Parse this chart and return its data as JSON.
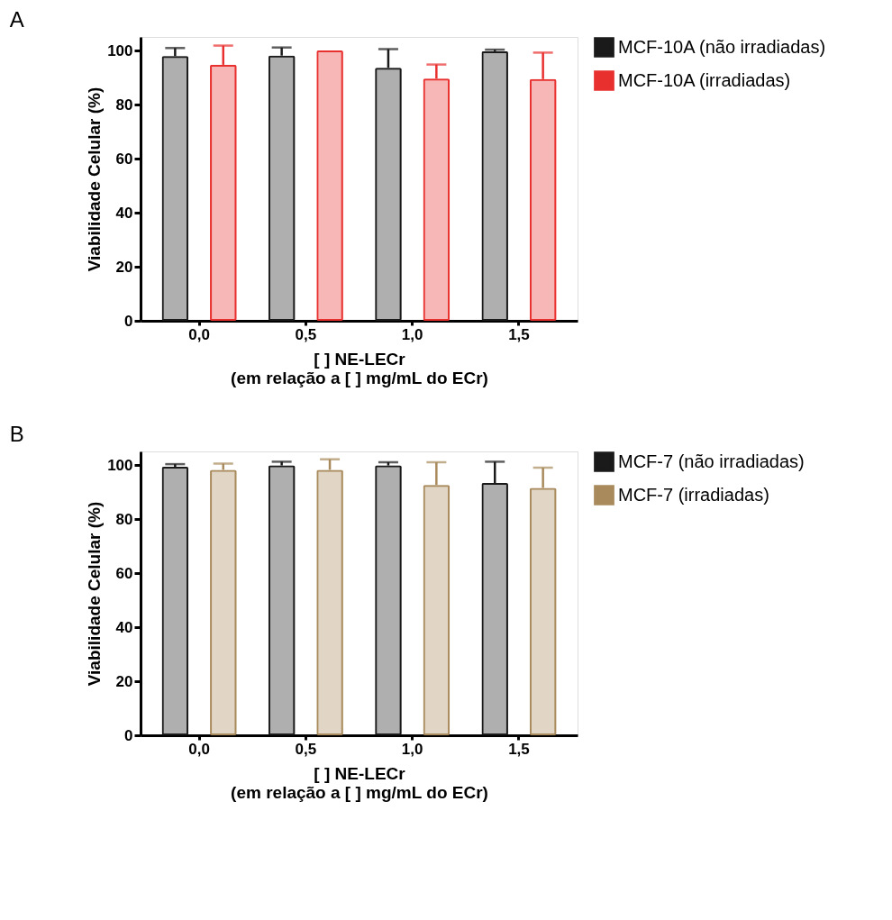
{
  "chart_data": [
    {
      "type": "bar",
      "title": "A",
      "xlabel": "[ ] NE-LECr\n(em relação a [ ] mg/mL do ECr)",
      "ylabel": "Viabilidade Celular (%)",
      "categories": [
        "0,0",
        "0,5",
        "1,0",
        "1,5"
      ],
      "ylim": [
        0,
        105
      ],
      "yticks": [
        0,
        20,
        40,
        60,
        80,
        100
      ],
      "legend": "top right",
      "grid": false,
      "series": [
        {
          "name": "MCF-10A (não irradiadas)",
          "color": "#1a1a1a",
          "values": [
            97.9,
            98.1,
            93.6,
            99.7
          ],
          "errors": [
            [
              97.9,
              100.9
            ],
            [
              98.1,
              101.1
            ],
            [
              93.6,
              100.5
            ],
            [
              99.7,
              100.3
            ]
          ]
        },
        {
          "name": "MCF-10A (irradiadas)",
          "color": "#e8302f",
          "values": [
            94.7,
            100,
            89.6,
            89.4
          ],
          "errors": [
            [
              94.7,
              101.8
            ],
            null,
            [
              89.6,
              94.8
            ],
            [
              89.4,
              99.2
            ]
          ]
        }
      ]
    },
    {
      "type": "bar",
      "title": "B",
      "xlabel": "[ ] NE-LECr\n(em relação a [ ] mg/mL do ECr)",
      "ylabel": "Viabilidade Celular (%)",
      "categories": [
        "0,0",
        "0,5",
        "1,0",
        "1,5"
      ],
      "ylim": [
        0,
        105
      ],
      "yticks": [
        0,
        20,
        40,
        60,
        80,
        100
      ],
      "legend": "top right",
      "grid": false,
      "series": [
        {
          "name": "MCF-7 (não irradiadas)",
          "color": "#1a1a1a",
          "values": [
            99.3,
            99.8,
            99.8,
            93.3
          ],
          "errors": [
            [
              99.3,
              100.3
            ],
            [
              99.8,
              101.2
            ],
            [
              99.8,
              101
            ],
            [
              93.3,
              101.2
            ]
          ]
        },
        {
          "name": "MCF-7 (irradiadas)",
          "color": "#a88a5c",
          "values": [
            98.2,
            98.2,
            92.6,
            91.5
          ],
          "errors": [
            [
              98.2,
              100.5
            ],
            [
              98.2,
              102.1
            ],
            [
              92.6,
              101
            ],
            [
              91.5,
              99
            ]
          ]
        }
      ]
    }
  ]
}
